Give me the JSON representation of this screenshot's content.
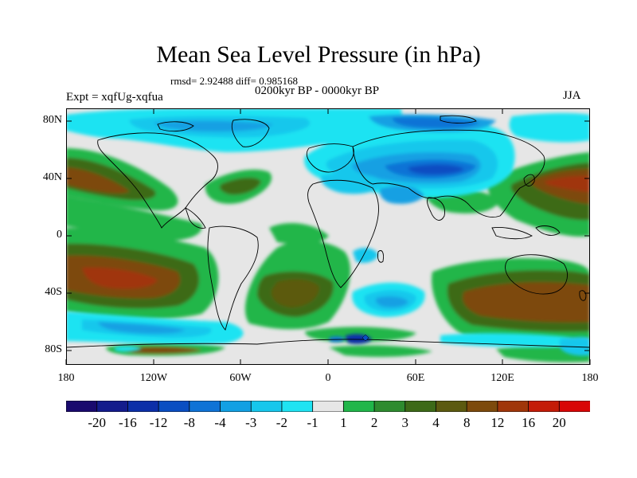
{
  "title": "Mean Sea Level Pressure (in hPa)",
  "stats": "rmsd= 2.92488 diff= 0.985168",
  "period": "0200kyr BP - 0000kyr BP",
  "experiment": "Expt = xqfUg-xqfua",
  "season": "JJA",
  "lat_labels": [
    "80N",
    "40N",
    "0",
    "40S",
    "80S"
  ],
  "lon_labels": [
    "180",
    "120W",
    "60W",
    "0",
    "60E",
    "120E",
    "180"
  ],
  "colorbar": {
    "labels": [
      "-20",
      "-16",
      "-12",
      "-8",
      "-4",
      "-3",
      "-2",
      "-1",
      "1",
      "2",
      "3",
      "4",
      "8",
      "12",
      "16",
      "20"
    ],
    "colors": [
      "#1a0a6e",
      "#141c8c",
      "#0c2fa8",
      "#0a4ec2",
      "#0f73d6",
      "#12a0e3",
      "#16c7ec",
      "#1fe3f2",
      "#e6e6e6",
      "#21b64a",
      "#2e8b2f",
      "#3d6a18",
      "#5c5a10",
      "#7d4a0c",
      "#a0360a",
      "#c41c08",
      "#d80606"
    ]
  }
}
